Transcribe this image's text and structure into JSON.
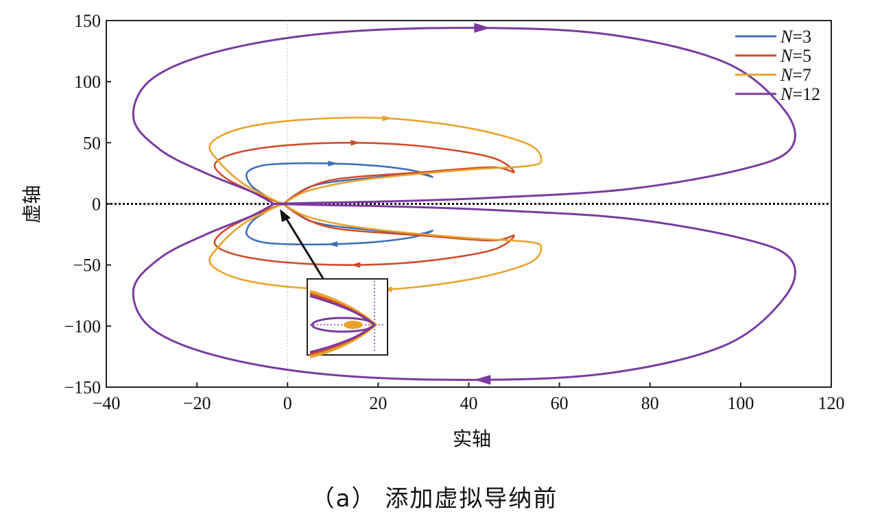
{
  "caption": "（a） 添加虚拟导纳前",
  "chart_data": {
    "type": "line",
    "subtype": "nyquist",
    "xlabel": "实轴",
    "ylabel": "虚轴",
    "xlim": [
      -40,
      120
    ],
    "ylim": [
      -150,
      150
    ],
    "xticks": [
      -40,
      -20,
      0,
      20,
      40,
      60,
      80,
      100,
      120
    ],
    "yticks": [
      150,
      100,
      50,
      0,
      -50,
      -100,
      -150
    ],
    "xtick_labels": [
      "−40",
      "−20",
      "0",
      "20",
      "40",
      "60",
      "80",
      "100",
      "120"
    ],
    "ytick_labels": [
      "150",
      "100",
      "50",
      "0",
      "−50",
      "−100",
      "−150"
    ],
    "legend_position": "top-right",
    "series": [
      {
        "name": "N=3",
        "var": "N",
        "value": "=3",
        "color": "#3f6fb8",
        "x": [
          -1,
          2,
          5,
          10,
          20,
          28,
          32,
          28,
          20,
          10,
          0,
          -6,
          -9,
          -8,
          -5,
          -2.5,
          -0.5
        ],
        "y": [
          0,
          8,
          14,
          18,
          22,
          25,
          22,
          27,
          31,
          33,
          33,
          31,
          25,
          15,
          7,
          2,
          0
        ]
      },
      {
        "name": "N=5",
        "var": "N",
        "value": "=5",
        "color": "#d24b2a",
        "x": [
          -1,
          3,
          8,
          15,
          30,
          45,
          50,
          45,
          30,
          15,
          0,
          -11,
          -16,
          -14,
          -9,
          -4,
          -1
        ],
        "y": [
          0,
          10,
          18,
          22,
          26,
          30,
          26,
          38,
          47,
          50,
          48,
          42,
          33,
          22,
          12,
          4,
          0
        ]
      },
      {
        "name": "N=7",
        "var": "N",
        "value": "=7",
        "color": "#e8a32a",
        "x": [
          -1,
          4,
          12,
          22,
          40,
          53,
          56,
          53,
          40,
          22,
          4,
          -10,
          -17,
          -15,
          -10,
          -4,
          -1
        ],
        "y": [
          0,
          10,
          17,
          22,
          28,
          31,
          36,
          49,
          62,
          70,
          69,
          62,
          49,
          34,
          17,
          5,
          0
        ]
      },
      {
        "name": "N=12",
        "var": "N",
        "value": "=12",
        "color": "#7a3aa0",
        "x": [
          -3,
          8,
          22,
          45,
          75,
          100,
          111,
          110,
          97,
          72,
          43,
          10,
          -15,
          -30,
          -34,
          -28,
          -18,
          -8,
          -3
        ],
        "y": [
          0,
          1,
          2,
          5,
          12,
          28,
          45,
          75,
          115,
          138,
          144,
          140,
          125,
          102,
          70,
          44,
          25,
          10,
          0
        ]
      }
    ],
    "annotation": "inset zoom of curves near origin with arrow"
  }
}
